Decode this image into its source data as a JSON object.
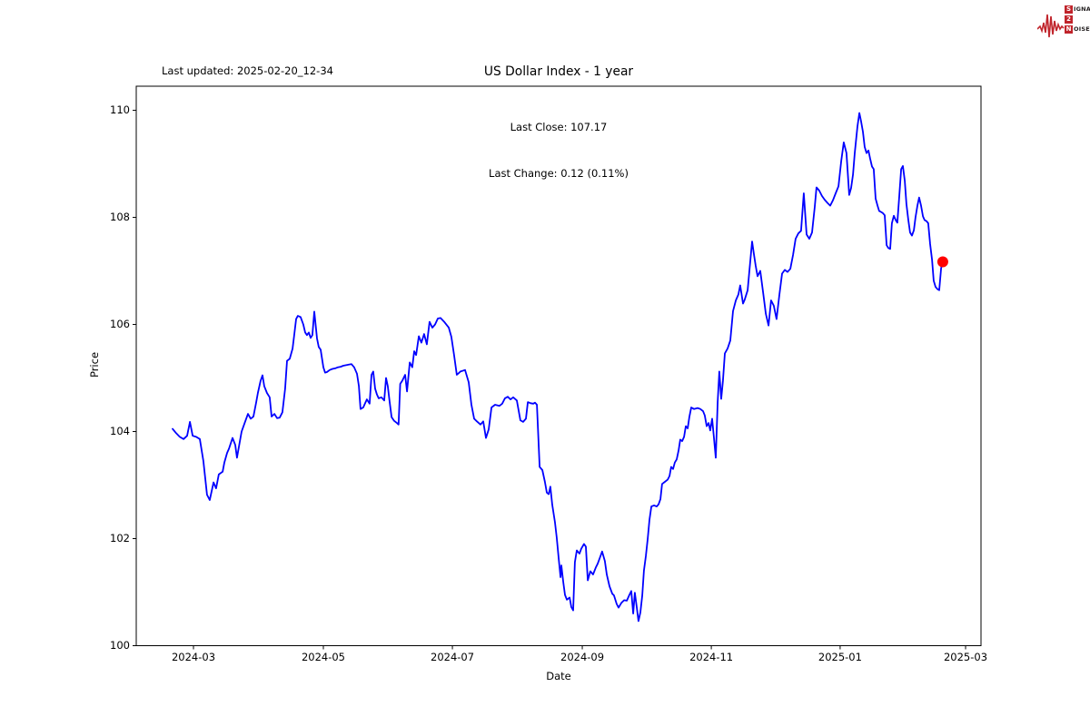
{
  "header": {
    "last_updated": "Last updated: 2025-02-20_12-34",
    "title": "US Dollar Index - 1 year",
    "subtitle_line1": "Last Close: 107.17",
    "subtitle_line2": "Last Change: 0.12 (0.11%)"
  },
  "logo": {
    "line1_letter": "S",
    "line1_rest": "IGNAL",
    "line2_letter": "2",
    "line2_rest": "",
    "line3_letter": "N",
    "line3_rest": "OISE",
    "accent_color": "#c0242b",
    "text_color": "#231f20"
  },
  "chart_data": {
    "type": "line",
    "title": "US Dollar Index - 1 year",
    "xlabel": "Date",
    "ylabel": "Price",
    "grid": false,
    "line_color": "#0000ff",
    "marker_color": "#ff0000",
    "axis_color": "#000000",
    "x_unit": "days since 2024-02-20",
    "x_start_date": "2024-02-20",
    "x_end_date": "2025-02-20",
    "xlim_days": [
      -17.2,
      382.8
    ],
    "ylim": [
      100.0,
      110.45
    ],
    "y_ticks": [
      100,
      102,
      104,
      106,
      108,
      110
    ],
    "x_ticks": [
      {
        "label": "2024-03",
        "day": 9.9
      },
      {
        "label": "2024-05",
        "day": 71.4
      },
      {
        "label": "2024-07",
        "day": 132.5
      },
      {
        "label": "2024-09",
        "day": 194.0
      },
      {
        "label": "2024-11",
        "day": 255.1
      },
      {
        "label": "2025-01",
        "day": 316.1
      },
      {
        "label": "2025-03",
        "day": 375.5
      }
    ],
    "last_point": {
      "day": 364.7,
      "price": 107.17
    },
    "points": [
      [
        0,
        104.05
      ],
      [
        1.7,
        103.97
      ],
      [
        3.4,
        103.9
      ],
      [
        5.2,
        103.86
      ],
      [
        6.9,
        103.92
      ],
      [
        8.2,
        104.18
      ],
      [
        9.5,
        103.92
      ],
      [
        11.2,
        103.9
      ],
      [
        12.9,
        103.86
      ],
      [
        14.6,
        103.45
      ],
      [
        16.3,
        102.82
      ],
      [
        17.6,
        102.72
      ],
      [
        19.4,
        103.05
      ],
      [
        20.6,
        102.94
      ],
      [
        21.9,
        103.2
      ],
      [
        23.7,
        103.25
      ],
      [
        24.5,
        103.42
      ],
      [
        25.8,
        103.6
      ],
      [
        26.7,
        103.68
      ],
      [
        28.4,
        103.88
      ],
      [
        29.7,
        103.75
      ],
      [
        30.5,
        103.51
      ],
      [
        31.8,
        103.8
      ],
      [
        32.7,
        104.0
      ],
      [
        34.4,
        104.19
      ],
      [
        35.7,
        104.33
      ],
      [
        37,
        104.24
      ],
      [
        38.3,
        104.28
      ],
      [
        39.6,
        104.55
      ],
      [
        40.4,
        104.72
      ],
      [
        41.7,
        104.95
      ],
      [
        42.6,
        105.05
      ],
      [
        43.4,
        104.85
      ],
      [
        44.7,
        104.72
      ],
      [
        46,
        104.64
      ],
      [
        46.9,
        104.28
      ],
      [
        48.2,
        104.33
      ],
      [
        49.5,
        104.25
      ],
      [
        50.7,
        104.26
      ],
      [
        52,
        104.36
      ],
      [
        53.3,
        104.8
      ],
      [
        54.2,
        105.32
      ],
      [
        55.5,
        105.36
      ],
      [
        56.8,
        105.55
      ],
      [
        57.6,
        105.8
      ],
      [
        58.5,
        106.1
      ],
      [
        59.3,
        106.16
      ],
      [
        60.6,
        106.14
      ],
      [
        61.9,
        106.0
      ],
      [
        62.8,
        105.85
      ],
      [
        63.6,
        105.8
      ],
      [
        64.5,
        105.85
      ],
      [
        65.4,
        105.75
      ],
      [
        66.2,
        105.8
      ],
      [
        67.1,
        106.24
      ],
      [
        68.4,
        105.74
      ],
      [
        69.2,
        105.58
      ],
      [
        70.1,
        105.53
      ],
      [
        71.4,
        105.2
      ],
      [
        72.2,
        105.1
      ],
      [
        73.1,
        105.11
      ],
      [
        74.4,
        105.15
      ],
      [
        75.7,
        105.17
      ],
      [
        77,
        105.18
      ],
      [
        78.3,
        105.2
      ],
      [
        79.6,
        105.21
      ],
      [
        80.8,
        105.23
      ],
      [
        82.1,
        105.24
      ],
      [
        83.4,
        105.25
      ],
      [
        84.7,
        105.26
      ],
      [
        86,
        105.2
      ],
      [
        87.3,
        105.08
      ],
      [
        88.2,
        104.85
      ],
      [
        89,
        104.42
      ],
      [
        90.3,
        104.45
      ],
      [
        91.2,
        104.53
      ],
      [
        92,
        104.6
      ],
      [
        93.3,
        104.52
      ],
      [
        94.2,
        105.06
      ],
      [
        95,
        105.12
      ],
      [
        95.9,
        104.8
      ],
      [
        96.8,
        104.69
      ],
      [
        97.6,
        104.62
      ],
      [
        98.9,
        104.64
      ],
      [
        100.2,
        104.58
      ],
      [
        101.1,
        105.0
      ],
      [
        101.9,
        104.85
      ],
      [
        102.8,
        104.55
      ],
      [
        103.7,
        104.27
      ],
      [
        104.9,
        104.2
      ],
      [
        106.2,
        104.16
      ],
      [
        107,
        104.13
      ],
      [
        107.8,
        104.89
      ],
      [
        108.8,
        104.95
      ],
      [
        110.1,
        105.06
      ],
      [
        111,
        104.75
      ],
      [
        112.3,
        105.29
      ],
      [
        113.5,
        105.2
      ],
      [
        114.4,
        105.5
      ],
      [
        115.3,
        105.43
      ],
      [
        116.6,
        105.78
      ],
      [
        117.8,
        105.66
      ],
      [
        119.1,
        105.82
      ],
      [
        120.4,
        105.63
      ],
      [
        121.7,
        106.05
      ],
      [
        123,
        105.94
      ],
      [
        124.3,
        106.0
      ],
      [
        125.6,
        106.11
      ],
      [
        126.9,
        106.12
      ],
      [
        128.6,
        106.05
      ],
      [
        130.8,
        105.94
      ],
      [
        132,
        105.77
      ],
      [
        133.3,
        105.43
      ],
      [
        134.6,
        105.06
      ],
      [
        135.5,
        105.09
      ],
      [
        136.3,
        105.12
      ],
      [
        138.5,
        105.15
      ],
      [
        140.2,
        104.92
      ],
      [
        141.5,
        104.5
      ],
      [
        142.8,
        104.24
      ],
      [
        144.1,
        104.19
      ],
      [
        145.8,
        104.13
      ],
      [
        147.1,
        104.19
      ],
      [
        148.4,
        103.88
      ],
      [
        149.7,
        104.04
      ],
      [
        151,
        104.45
      ],
      [
        152.7,
        104.5
      ],
      [
        154.8,
        104.48
      ],
      [
        156.1,
        104.52
      ],
      [
        157.4,
        104.62
      ],
      [
        158.7,
        104.65
      ],
      [
        160,
        104.6
      ],
      [
        161.3,
        104.64
      ],
      [
        163,
        104.58
      ],
      [
        164.7,
        104.21
      ],
      [
        166,
        104.18
      ],
      [
        167.3,
        104.24
      ],
      [
        168.2,
        104.55
      ],
      [
        169.5,
        104.53
      ],
      [
        170.8,
        104.52
      ],
      [
        171.6,
        104.54
      ],
      [
        172.5,
        104.5
      ],
      [
        173.8,
        103.34
      ],
      [
        175.1,
        103.28
      ],
      [
        176.3,
        103.06
      ],
      [
        177.2,
        102.86
      ],
      [
        178.1,
        102.83
      ],
      [
        178.9,
        102.97
      ],
      [
        179.8,
        102.63
      ],
      [
        181.1,
        102.3
      ],
      [
        181.9,
        102.02
      ],
      [
        182.8,
        101.64
      ],
      [
        183.7,
        101.28
      ],
      [
        184.1,
        101.5
      ],
      [
        185,
        101.19
      ],
      [
        185.8,
        100.95
      ],
      [
        186.7,
        100.86
      ],
      [
        188,
        100.9
      ],
      [
        188.8,
        100.72
      ],
      [
        189.7,
        100.66
      ],
      [
        190.5,
        101.56
      ],
      [
        191.4,
        101.78
      ],
      [
        192.7,
        101.72
      ],
      [
        193.5,
        101.81
      ],
      [
        194.8,
        101.9
      ],
      [
        195.7,
        101.85
      ],
      [
        196.6,
        101.22
      ],
      [
        197.8,
        101.39
      ],
      [
        199.1,
        101.33
      ],
      [
        200.4,
        101.46
      ],
      [
        201.3,
        101.53
      ],
      [
        202.6,
        101.67
      ],
      [
        203.4,
        101.76
      ],
      [
        204.7,
        101.58
      ],
      [
        205.6,
        101.33
      ],
      [
        206.9,
        101.11
      ],
      [
        208.2,
        100.97
      ],
      [
        209,
        100.94
      ],
      [
        210.3,
        100.78
      ],
      [
        211.2,
        100.71
      ],
      [
        212.5,
        100.8
      ],
      [
        213.8,
        100.85
      ],
      [
        215.1,
        100.84
      ],
      [
        216.3,
        100.95
      ],
      [
        217.2,
        101.02
      ],
      [
        218.1,
        100.6
      ],
      [
        218.9,
        100.99
      ],
      [
        219.8,
        100.72
      ],
      [
        220.6,
        100.46
      ],
      [
        221.5,
        100.62
      ],
      [
        222.4,
        100.94
      ],
      [
        223.2,
        101.4
      ],
      [
        224.1,
        101.67
      ],
      [
        225,
        102.0
      ],
      [
        225.8,
        102.35
      ],
      [
        226.7,
        102.6
      ],
      [
        228,
        102.62
      ],
      [
        229.2,
        102.6
      ],
      [
        230.1,
        102.64
      ],
      [
        231,
        102.74
      ],
      [
        231.8,
        103.02
      ],
      [
        233.1,
        103.06
      ],
      [
        234.4,
        103.1
      ],
      [
        235.3,
        103.17
      ],
      [
        236.1,
        103.34
      ],
      [
        237,
        103.3
      ],
      [
        237.8,
        103.42
      ],
      [
        238.7,
        103.48
      ],
      [
        239.6,
        103.65
      ],
      [
        240.4,
        103.85
      ],
      [
        241.3,
        103.82
      ],
      [
        242.2,
        103.9
      ],
      [
        243,
        104.1
      ],
      [
        243.9,
        104.06
      ],
      [
        244.7,
        104.27
      ],
      [
        245.6,
        104.45
      ],
      [
        246.9,
        104.42
      ],
      [
        248.6,
        104.44
      ],
      [
        249.9,
        104.42
      ],
      [
        251.2,
        104.38
      ],
      [
        252,
        104.3
      ],
      [
        252.9,
        104.1
      ],
      [
        253.8,
        104.16
      ],
      [
        254.6,
        104.02
      ],
      [
        255.5,
        104.24
      ],
      [
        256.3,
        103.9
      ],
      [
        257.2,
        103.51
      ],
      [
        258.1,
        104.55
      ],
      [
        258.9,
        105.12
      ],
      [
        259.8,
        104.61
      ],
      [
        260.6,
        104.95
      ],
      [
        261.5,
        105.46
      ],
      [
        262.8,
        105.55
      ],
      [
        264.1,
        105.7
      ],
      [
        265.4,
        106.25
      ],
      [
        266.7,
        106.45
      ],
      [
        267.9,
        106.56
      ],
      [
        268.8,
        106.73
      ],
      [
        270.1,
        106.39
      ],
      [
        270.9,
        106.46
      ],
      [
        272.3,
        106.64
      ],
      [
        273.1,
        106.98
      ],
      [
        274.4,
        107.55
      ],
      [
        275.3,
        107.3
      ],
      [
        276.1,
        107.1
      ],
      [
        277,
        106.9
      ],
      [
        278.3,
        107.0
      ],
      [
        279.6,
        106.6
      ],
      [
        280.9,
        106.2
      ],
      [
        282.2,
        105.98
      ],
      [
        283.4,
        106.45
      ],
      [
        284.7,
        106.35
      ],
      [
        286,
        106.1
      ],
      [
        287.3,
        106.55
      ],
      [
        288.6,
        106.95
      ],
      [
        289.9,
        107.02
      ],
      [
        291.2,
        106.98
      ],
      [
        292.5,
        107.04
      ],
      [
        293.8,
        107.3
      ],
      [
        295,
        107.6
      ],
      [
        296.3,
        107.7
      ],
      [
        297.6,
        107.75
      ],
      [
        298.9,
        108.45
      ],
      [
        300.2,
        107.68
      ],
      [
        301.5,
        107.6
      ],
      [
        302.8,
        107.72
      ],
      [
        304.1,
        108.2
      ],
      [
        304.9,
        108.56
      ],
      [
        306.2,
        108.5
      ],
      [
        307.5,
        108.4
      ],
      [
        308.8,
        108.33
      ],
      [
        310.1,
        108.27
      ],
      [
        311.4,
        108.22
      ],
      [
        312.7,
        108.32
      ],
      [
        314,
        108.45
      ],
      [
        315.3,
        108.58
      ],
      [
        316.6,
        109.05
      ],
      [
        317.8,
        109.4
      ],
      [
        319.1,
        109.2
      ],
      [
        320.4,
        108.42
      ],
      [
        321.3,
        108.55
      ],
      [
        322.2,
        108.8
      ],
      [
        323,
        109.2
      ],
      [
        324.3,
        109.7
      ],
      [
        325.2,
        109.95
      ],
      [
        326,
        109.8
      ],
      [
        326.9,
        109.6
      ],
      [
        327.7,
        109.32
      ],
      [
        328.6,
        109.2
      ],
      [
        329.5,
        109.25
      ],
      [
        330.3,
        109.1
      ],
      [
        331.2,
        108.95
      ],
      [
        332,
        108.9
      ],
      [
        332.9,
        108.35
      ],
      [
        333.8,
        108.22
      ],
      [
        334.6,
        108.12
      ],
      [
        335.5,
        108.1
      ],
      [
        336.3,
        108.08
      ],
      [
        337.2,
        108.04
      ],
      [
        338.1,
        107.48
      ],
      [
        338.9,
        107.43
      ],
      [
        339.8,
        107.41
      ],
      [
        340.6,
        107.89
      ],
      [
        341.5,
        108.03
      ],
      [
        342.4,
        107.95
      ],
      [
        343.2,
        107.9
      ],
      [
        344.1,
        108.39
      ],
      [
        345,
        108.9
      ],
      [
        345.8,
        108.96
      ],
      [
        346.7,
        108.68
      ],
      [
        347.5,
        108.25
      ],
      [
        348.4,
        107.95
      ],
      [
        349.2,
        107.72
      ],
      [
        350.1,
        107.66
      ],
      [
        351,
        107.76
      ],
      [
        351.8,
        108.0
      ],
      [
        352.7,
        108.22
      ],
      [
        353.5,
        108.37
      ],
      [
        354.4,
        108.22
      ],
      [
        355.3,
        108.02
      ],
      [
        356.1,
        107.95
      ],
      [
        357,
        107.93
      ],
      [
        357.8,
        107.89
      ],
      [
        358.7,
        107.5
      ],
      [
        359.6,
        107.21
      ],
      [
        360.4,
        106.82
      ],
      [
        361.3,
        106.7
      ],
      [
        362.2,
        106.66
      ],
      [
        363,
        106.64
      ],
      [
        363.9,
        107.05
      ],
      [
        364.7,
        107.17
      ]
    ]
  }
}
